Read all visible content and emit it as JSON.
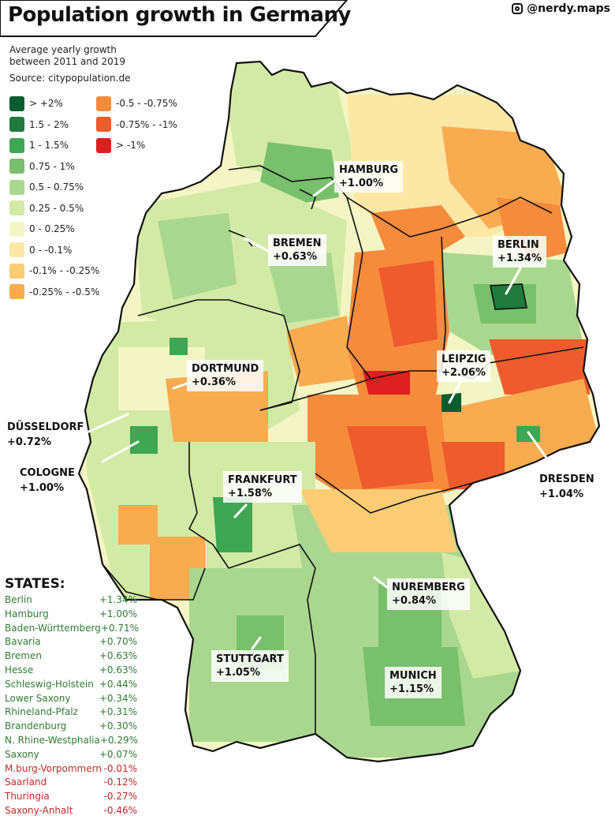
{
  "header": {
    "title": "Population growth in Germany",
    "handle": "@nerdy.maps"
  },
  "subtitle": {
    "line1": "Average yearly growth",
    "line2": "between 2011 and 2019",
    "source": "Source: citypopulation.de"
  },
  "legend": {
    "items": [
      {
        "label": "> +2%",
        "color": "#0a5d2f"
      },
      {
        "label": "1.5 - 2%",
        "color": "#1f7a3c"
      },
      {
        "label": "1 - 1.5%",
        "color": "#3fa653"
      },
      {
        "label": "0.75 - 1%",
        "color": "#79c06c"
      },
      {
        "label": "0.5 - 0.75%",
        "color": "#a9d78f"
      },
      {
        "label": "0.25 - 0.5%",
        "color": "#d3eaa6"
      },
      {
        "label": "0 - 0.25%",
        "color": "#f3f6c4"
      },
      {
        "label": "0 - -0.1%",
        "color": "#fde7a5"
      },
      {
        "label": "-0.1% - -0.25%",
        "color": "#fbcc73"
      },
      {
        "label": "-0.25% - -0.5%",
        "color": "#f9ab50"
      },
      {
        "label": "-0.5 - -0.75%",
        "color": "#f68b3c"
      },
      {
        "label": "-0.75% - -1%",
        "color": "#ee5b2c"
      },
      {
        "label": "> -1%",
        "color": "#dd1f20"
      }
    ]
  },
  "cities": {
    "hamburg": {
      "name": "HAMBURG",
      "value": "+1.00%"
    },
    "bremen": {
      "name": "BREMEN",
      "value": "+0.63%"
    },
    "berlin": {
      "name": "BERLIN",
      "value": "+1.34%"
    },
    "dortmund": {
      "name": "DORTMUND",
      "value": "+0.36%"
    },
    "leipzig": {
      "name": "LEIPZIG",
      "value": "+2.06%"
    },
    "dusseldorf": {
      "name": "DÜSSELDORF",
      "value": "+0.72%"
    },
    "cologne": {
      "name": "COLOGNE",
      "value": "+1.00%"
    },
    "frankfurt": {
      "name": "FRANKFURT",
      "value": "+1.58%"
    },
    "dresden": {
      "name": "DRESDEN",
      "value": "+1.04%"
    },
    "nuremberg": {
      "name": "NUREMBERG",
      "value": "+0.84%"
    },
    "stuttgart": {
      "name": "STUTTGART",
      "value": "+1.05%"
    },
    "munich": {
      "name": "MUNICH",
      "value": "+1.15%"
    }
  },
  "states_title": "STATES:",
  "states": [
    {
      "name": "Berlin",
      "value": "+1.34%",
      "color": "#2e7d32"
    },
    {
      "name": "Hamburg",
      "value": "+1.00%",
      "color": "#2e7d32"
    },
    {
      "name": "Baden-Württemberg",
      "value": "+0.71%",
      "color": "#2e7d32"
    },
    {
      "name": "Bavaria",
      "value": "+0.70%",
      "color": "#2e7d32"
    },
    {
      "name": "Bremen",
      "value": "+0.63%",
      "color": "#2e7d32"
    },
    {
      "name": "Hesse",
      "value": "+0.63%",
      "color": "#2e7d32"
    },
    {
      "name": "Schleswig-Holstein",
      "value": "+0.44%",
      "color": "#2e7d32"
    },
    {
      "name": "Lower Saxony",
      "value": "+0.34%",
      "color": "#2e7d32"
    },
    {
      "name": "Rhineland-Pfalz",
      "value": "+0.31%",
      "color": "#2e7d32"
    },
    {
      "name": "Brandenburg",
      "value": "+0.30%",
      "color": "#2e7d32"
    },
    {
      "name": "N. Rhine-Westphalia",
      "value": "+0.29%",
      "color": "#2e7d32"
    },
    {
      "name": "Saxony",
      "value": "+0.07%",
      "color": "#2e7d32"
    },
    {
      "name": "M.burg-Vorpommern",
      "value": "-0.01%",
      "color": "#c62828"
    },
    {
      "name": "Saarland",
      "value": "-0.12%",
      "color": "#c62828"
    },
    {
      "name": "Thuringia",
      "value": "-0.27%",
      "color": "#c62828"
    },
    {
      "name": "Saxony-Anhalt",
      "value": "-0.46%",
      "color": "#c62828"
    }
  ]
}
